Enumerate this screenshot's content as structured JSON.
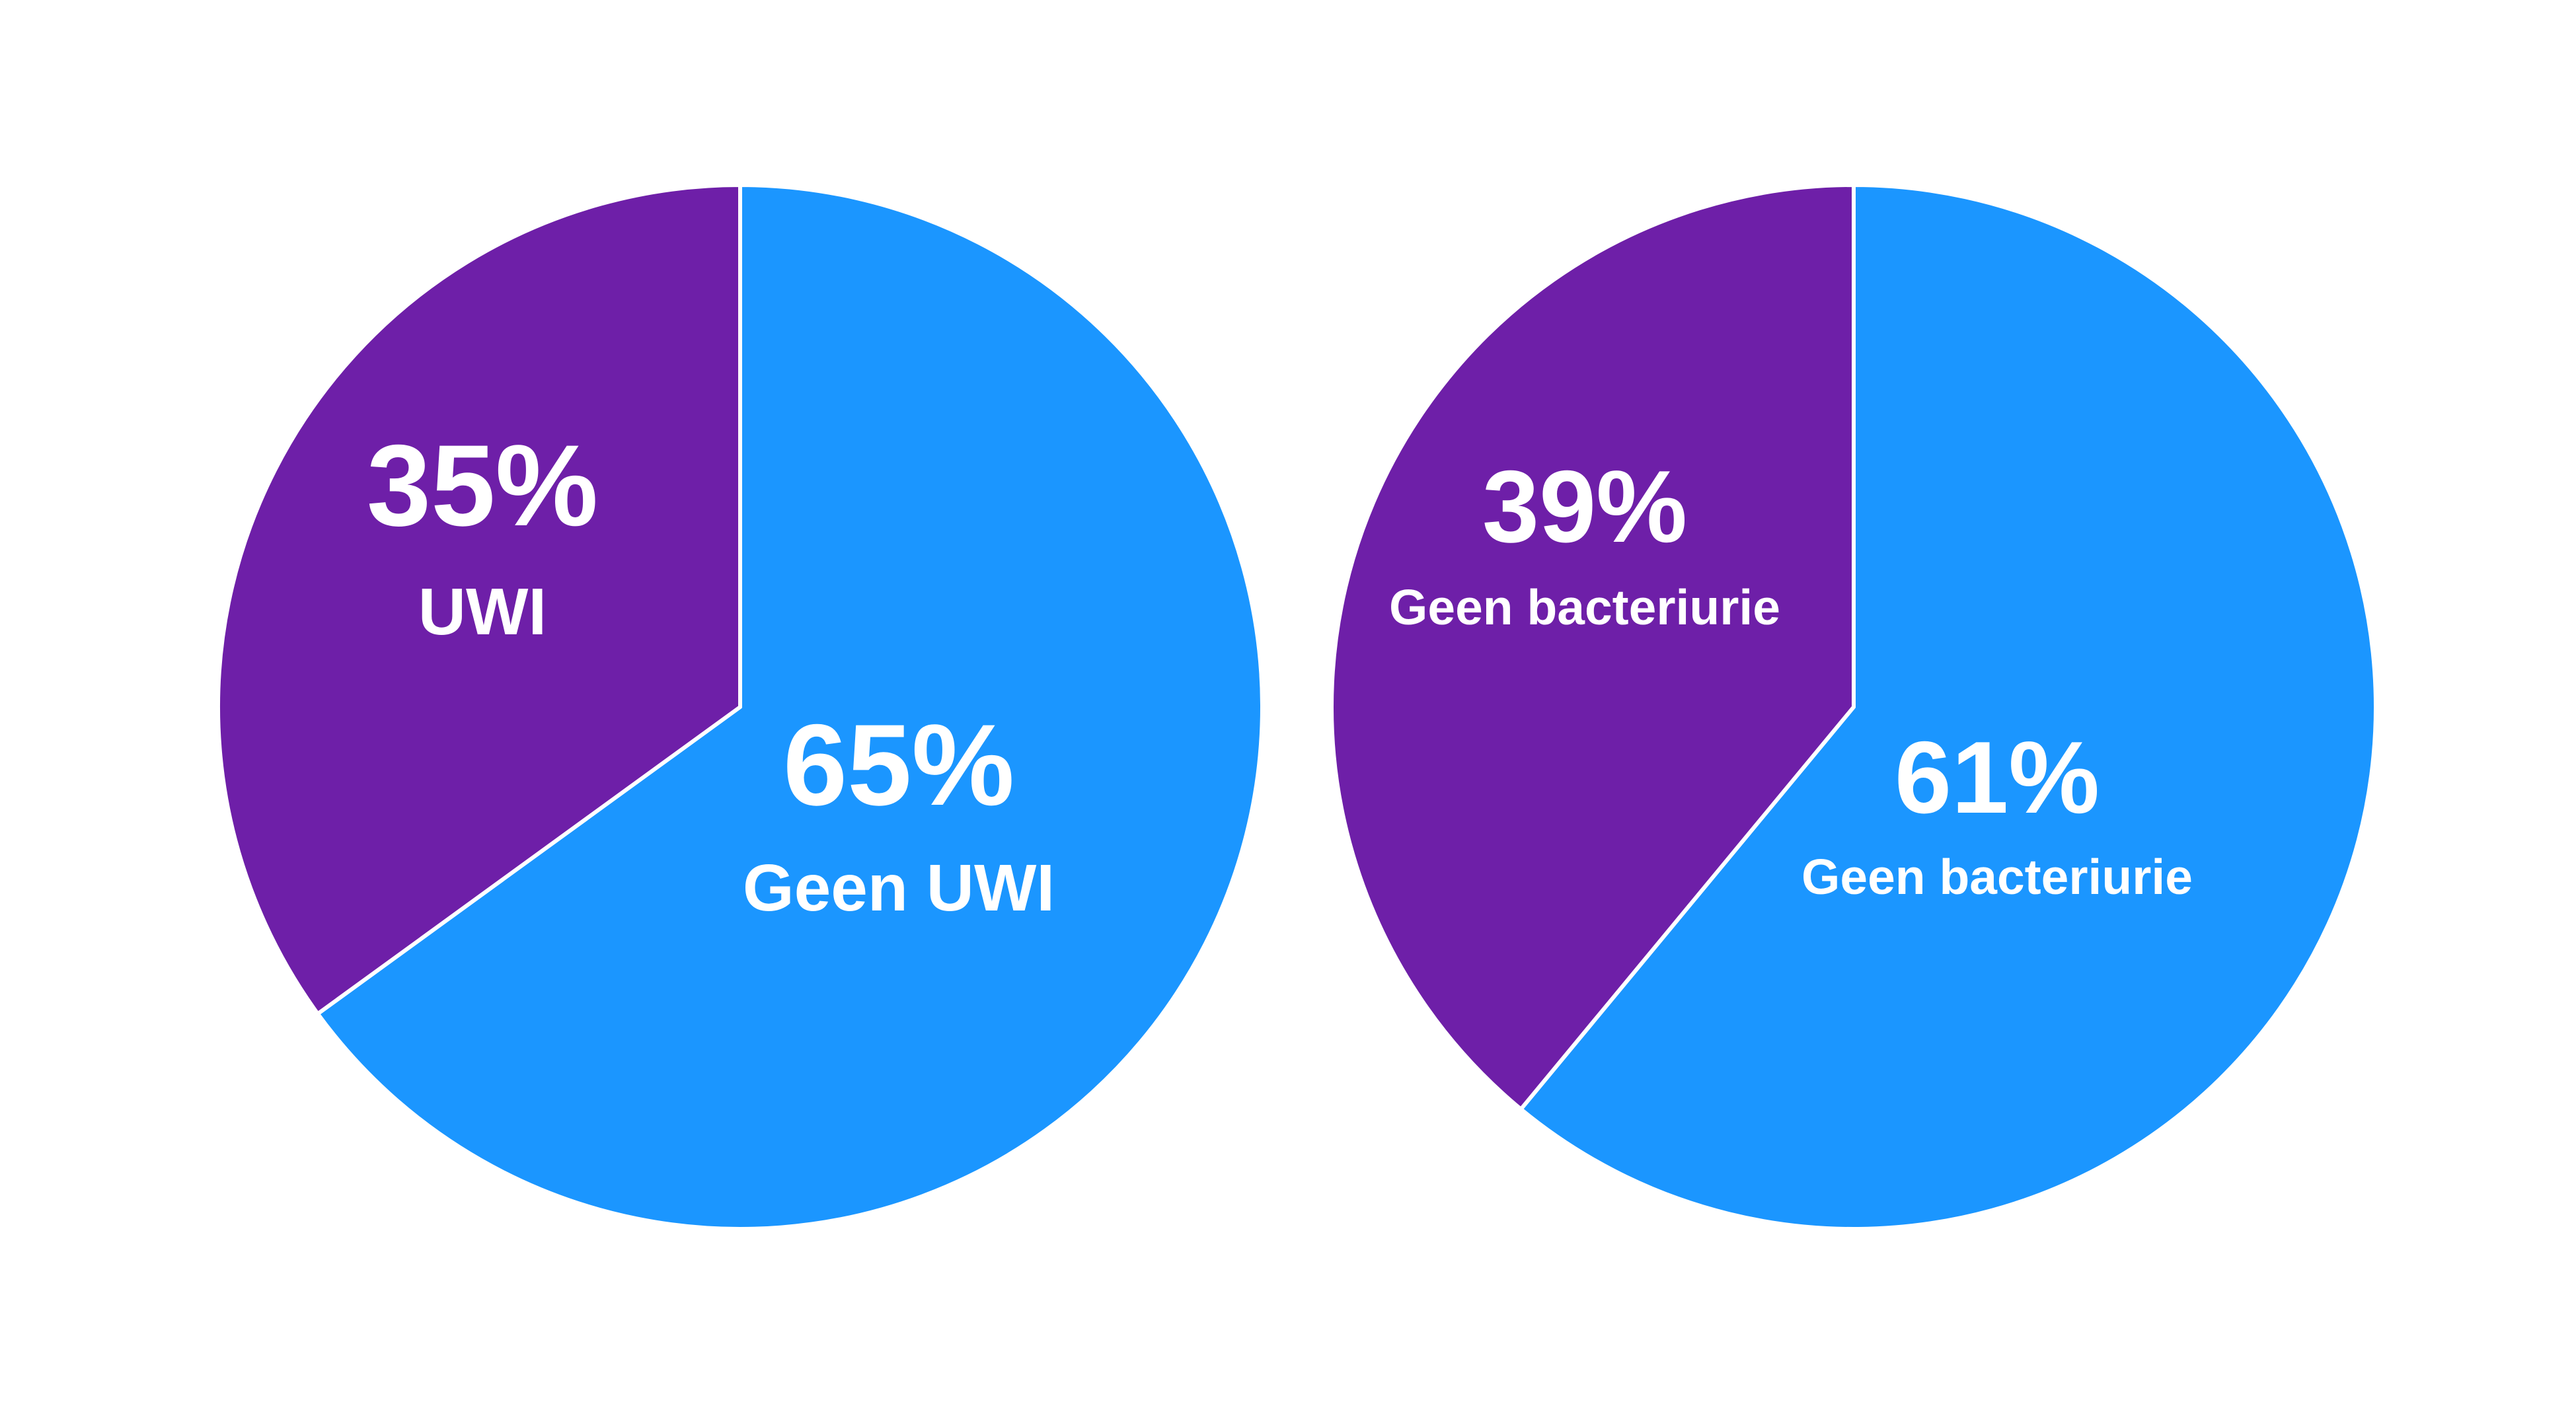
{
  "colors": {
    "background": "#ffffff",
    "slice_border": "#ffffff"
  },
  "chart_data": [
    {
      "type": "pie",
      "title": "",
      "start_angle": "12 o'clock",
      "direction": "clockwise",
      "slices": [
        {
          "value": 65,
          "percent_label": "65%",
          "label": "Geen UWI",
          "color": "#1b96ff"
        },
        {
          "value": 35,
          "percent_label": "35%",
          "label": "UWI",
          "color": "#6e1fa8"
        }
      ]
    },
    {
      "type": "pie",
      "title": "",
      "start_angle": "12 o'clock",
      "direction": "clockwise",
      "slices": [
        {
          "value": 61,
          "percent_label": "61%",
          "label": "Geen bacteriurie",
          "color": "#1b96ff"
        },
        {
          "value": 39,
          "percent_label": "39%",
          "label": "Geen bacteriurie",
          "color": "#6e1fa8"
        }
      ]
    }
  ]
}
